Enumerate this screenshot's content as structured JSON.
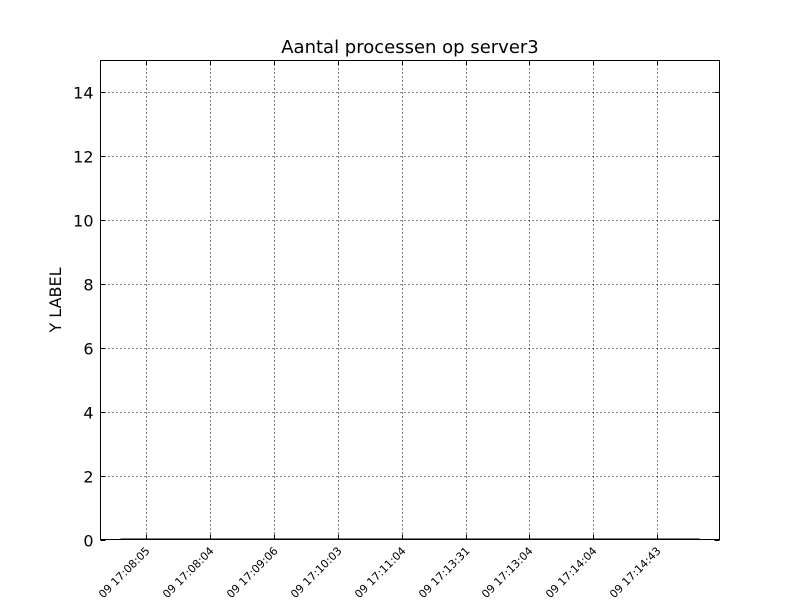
{
  "chart_data": {
    "type": "line",
    "title": "Aantal processen op server3",
    "xlabel": "",
    "ylabel": "Y LABEL",
    "ylim": [
      0,
      15
    ],
    "yticks": [
      0,
      2,
      4,
      6,
      8,
      10,
      12,
      14
    ],
    "categories": [
      "09 17:08:05",
      "09 17:08:04",
      "09 17:09:06",
      "09 17:10:03",
      "09 17:11:04",
      "09 17:13:31",
      "09 17:13:04",
      "09 17:14:04",
      "09 17:14:43"
    ],
    "series": [
      {
        "values": [
          0,
          0,
          0,
          0,
          0,
          0,
          0,
          0,
          0
        ]
      }
    ],
    "grid": true,
    "line_color": "#000000"
  }
}
